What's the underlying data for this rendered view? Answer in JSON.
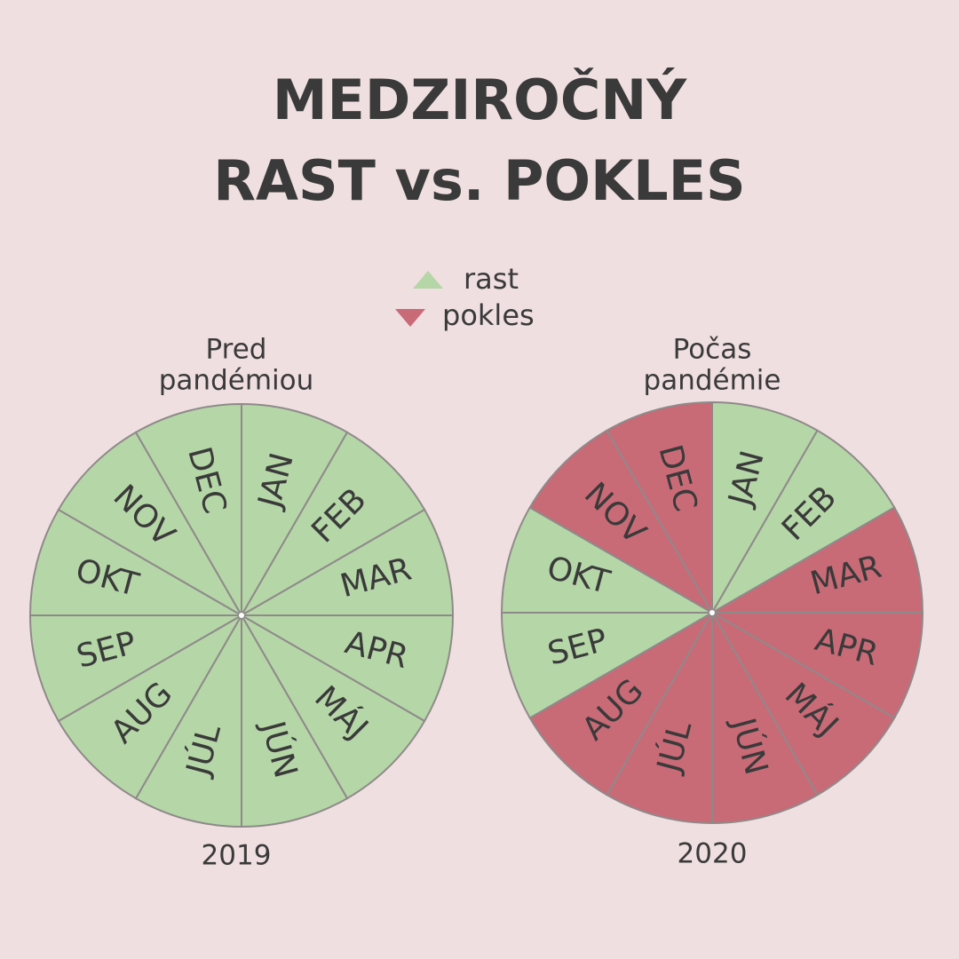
{
  "title": [
    "MEDZIROČNÝ",
    "RAST vs. POKLES"
  ],
  "legend": [
    {
      "label": "rast",
      "color": "#b5d6a7",
      "marker": "up"
    },
    {
      "label": "pokles",
      "color": "#c96a77",
      "marker": "down"
    }
  ],
  "wheels": [
    {
      "label": [
        "Pred",
        "pandémiou"
      ],
      "year": "2019",
      "segments": [
        {
          "month": "JAN",
          "status": "rast"
        },
        {
          "month": "FEB",
          "status": "rast"
        },
        {
          "month": "MAR",
          "status": "rast"
        },
        {
          "month": "APR",
          "status": "rast"
        },
        {
          "month": "MÁJ",
          "status": "rast"
        },
        {
          "month": "JÚN",
          "status": "rast"
        },
        {
          "month": "JÚL",
          "status": "rast"
        },
        {
          "month": "AUG",
          "status": "rast"
        },
        {
          "month": "SEP",
          "status": "rast"
        },
        {
          "month": "OKT",
          "status": "rast"
        },
        {
          "month": "NOV",
          "status": "rast"
        },
        {
          "month": "DEC",
          "status": "rast"
        }
      ]
    },
    {
      "label": [
        "Počas",
        "pandémie"
      ],
      "year": "2020",
      "segments": [
        {
          "month": "JAN",
          "status": "rast"
        },
        {
          "month": "FEB",
          "status": "rast"
        },
        {
          "month": "MAR",
          "status": "pokles"
        },
        {
          "month": "APR",
          "status": "pokles"
        },
        {
          "month": "MÁJ",
          "status": "pokles"
        },
        {
          "month": "JÚN",
          "status": "pokles"
        },
        {
          "month": "JÚL",
          "status": "pokles"
        },
        {
          "month": "AUG",
          "status": "pokles"
        },
        {
          "month": "SEP",
          "status": "rast"
        },
        {
          "month": "OKT",
          "status": "rast"
        },
        {
          "month": "NOV",
          "status": "pokles"
        },
        {
          "month": "DEC",
          "status": "pokles"
        }
      ]
    }
  ]
}
